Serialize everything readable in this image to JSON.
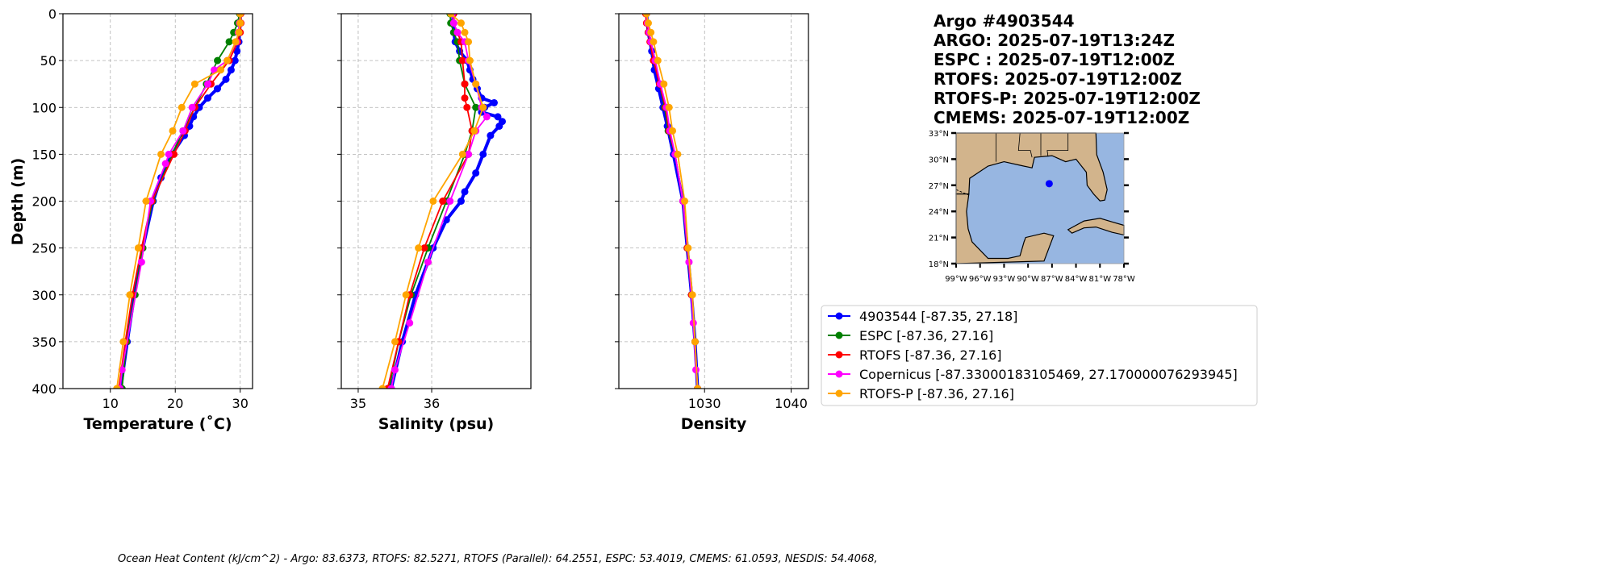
{
  "title_lines": [
    "Argo #4903544",
    "ARGO: 2025-07-19T13:24Z",
    "ESPC : 2025-07-19T12:00Z",
    "RTOFS: 2025-07-19T12:00Z",
    "RTOFS-P: 2025-07-19T12:00Z",
    "CMEMS: 2025-07-19T12:00Z"
  ],
  "footer": "Ocean Heat Content (kJ/cm^2) - Argo: 83.6373,  RTOFS: 82.5271,  RTOFS (Parallel): 64.2551,  ESPC: 53.4019,  CMEMS: 61.0593,  NESDIS: 54.4068,",
  "chart_data": [
    {
      "type": "line",
      "key": "temp",
      "xlabel": "Temperature (˚C)",
      "ylabel": "Depth (m)",
      "xlim": [
        2.7,
        31.9
      ],
      "ylim": [
        400,
        0
      ],
      "xticks": [
        10,
        20,
        30
      ],
      "yticks": [
        0,
        50,
        100,
        150,
        200,
        250,
        300,
        350,
        400
      ],
      "grid": true,
      "series": [
        {
          "name": "4903544",
          "color": "#0000ff",
          "depth": [
            0,
            10,
            20,
            30,
            40,
            50,
            60,
            70,
            80,
            90,
            100,
            110,
            120,
            130,
            150,
            175,
            200,
            250,
            300,
            350,
            400
          ],
          "values": [
            30,
            30,
            29.9,
            29.8,
            29.5,
            29.2,
            28.6,
            27.8,
            26.5,
            25,
            23.7,
            22.8,
            22.2,
            21.4,
            19.5,
            17.8,
            16.6,
            15,
            13.7,
            12.6,
            11.6
          ]
        },
        {
          "name": "ESPC",
          "color": "#008000",
          "depth": [
            0,
            10,
            20,
            30,
            50,
            75,
            100,
            125,
            150,
            200,
            250,
            300,
            350,
            400
          ],
          "values": [
            29.9,
            29.6,
            29,
            28.3,
            26.5,
            24.8,
            23,
            21.2,
            19.5,
            16.5,
            15,
            13.8,
            12.5,
            11.8
          ]
        },
        {
          "name": "RTOFS",
          "color": "#ff0000",
          "depth": [
            0,
            10,
            20,
            30,
            50,
            75,
            100,
            125,
            150,
            200,
            250,
            300,
            350,
            400
          ],
          "values": [
            30.1,
            30.1,
            30,
            29.6,
            28.3,
            25.5,
            23,
            21.5,
            19.8,
            16.4,
            14.8,
            13.4,
            12.3,
            11.3
          ]
        },
        {
          "name": "Copernicus",
          "color": "#ff00ff",
          "depth": [
            0,
            10,
            20,
            30,
            50,
            60,
            75,
            100,
            125,
            150,
            160,
            200,
            265,
            380,
            400
          ],
          "values": [
            30,
            29.9,
            29.7,
            29.4,
            28,
            26,
            25,
            22.6,
            21.2,
            19,
            18.5,
            16.2,
            14.8,
            11.8,
            11.5
          ]
        },
        {
          "name": "RTOFS-P",
          "color": "#ffa500",
          "depth": [
            0,
            10,
            20,
            30,
            50,
            60,
            75,
            100,
            125,
            150,
            200,
            250,
            300,
            350,
            400
          ],
          "values": [
            30,
            30,
            29.8,
            29.3,
            28,
            27,
            23,
            21,
            19.6,
            17.8,
            15.5,
            14.3,
            13,
            12,
            11
          ]
        }
      ]
    },
    {
      "type": "line",
      "key": "sal",
      "xlabel": "Salinity (psu)",
      "xlim": [
        34.77,
        37.35
      ],
      "ylim": [
        400,
        0
      ],
      "xticks": [
        35,
        36
      ],
      "yticks": [
        0,
        50,
        100,
        150,
        200,
        250,
        300,
        350,
        400
      ],
      "grid": true,
      "series": [
        {
          "name": "4903544",
          "color": "#0000ff",
          "depth": [
            0,
            10,
            20,
            30,
            40,
            50,
            60,
            70,
            80,
            90,
            95,
            100,
            105,
            110,
            115,
            120,
            130,
            150,
            170,
            190,
            200,
            220,
            250,
            300,
            350,
            400
          ],
          "values": [
            36.29,
            36.29,
            36.3,
            36.32,
            36.38,
            36.48,
            36.52,
            36.56,
            36.62,
            36.68,
            36.85,
            36.72,
            36.68,
            36.9,
            36.96,
            36.92,
            36.8,
            36.7,
            36.6,
            36.45,
            36.4,
            36.2,
            36.02,
            35.78,
            35.6,
            35.45
          ]
        },
        {
          "name": "ESPC",
          "color": "#008000",
          "depth": [
            0,
            10,
            20,
            30,
            50,
            75,
            100,
            125,
            150,
            200,
            250,
            300,
            350,
            400
          ],
          "values": [
            36.25,
            36.26,
            36.3,
            36.35,
            36.38,
            36.45,
            36.6,
            36.55,
            36.45,
            36.2,
            35.95,
            35.72,
            35.55,
            35.42
          ]
        },
        {
          "name": "RTOFS",
          "color": "#ff0000",
          "depth": [
            0,
            10,
            20,
            30,
            50,
            75,
            90,
            100,
            125,
            150,
            200,
            250,
            300,
            350,
            400
          ],
          "values": [
            36.3,
            36.3,
            36.35,
            36.4,
            36.42,
            36.45,
            36.45,
            36.48,
            36.55,
            36.5,
            36.15,
            35.9,
            35.7,
            35.55,
            35.4
          ]
        },
        {
          "name": "Copernicus",
          "color": "#ff00ff",
          "depth": [
            0,
            10,
            20,
            30,
            50,
            75,
            100,
            110,
            125,
            150,
            200,
            265,
            330,
            380,
            400
          ],
          "values": [
            36.28,
            36.3,
            36.35,
            36.45,
            36.5,
            36.6,
            36.68,
            36.75,
            36.6,
            36.5,
            36.25,
            35.95,
            35.7,
            35.5,
            35.45
          ]
        },
        {
          "name": "RTOFS-P",
          "color": "#ffa500",
          "depth": [
            0,
            10,
            20,
            30,
            50,
            75,
            100,
            125,
            150,
            200,
            250,
            300,
            350,
            400
          ],
          "values": [
            36.26,
            36.4,
            36.45,
            36.5,
            36.52,
            36.6,
            36.7,
            36.58,
            36.42,
            36.02,
            35.82,
            35.65,
            35.5,
            35.33
          ]
        }
      ]
    },
    {
      "type": "line",
      "key": "dens",
      "xlabel": "Density",
      "xlim": [
        1020.1,
        1042
      ],
      "ylim": [
        400,
        0
      ],
      "xticks": [
        1030,
        1040
      ],
      "yticks": [
        0,
        50,
        100,
        150,
        200,
        250,
        300,
        350,
        400
      ],
      "grid": true,
      "series": [
        {
          "name": "4903544",
          "color": "#0000ff",
          "depth": [
            0,
            20,
            40,
            60,
            80,
            100,
            120,
            150,
            200,
            250,
            300,
            350,
            400
          ],
          "values": [
            1023.3,
            1023.5,
            1023.9,
            1024.2,
            1024.7,
            1025.2,
            1025.7,
            1026.4,
            1027.5,
            1028,
            1028.5,
            1028.9,
            1029.2
          ]
        },
        {
          "name": "ESPC",
          "color": "#008000",
          "depth": [
            0,
            10,
            20,
            30,
            50,
            75,
            100,
            125,
            150,
            200,
            250,
            300,
            350,
            400
          ],
          "values": [
            1023.3,
            1023.4,
            1023.6,
            1023.8,
            1024.3,
            1024.8,
            1025.4,
            1025.8,
            1026.6,
            1027.5,
            1028,
            1028.5,
            1028.9,
            1029.2
          ]
        },
        {
          "name": "RTOFS",
          "color": "#ff0000",
          "depth": [
            0,
            10,
            20,
            30,
            50,
            75,
            100,
            125,
            150,
            200,
            250,
            300,
            350,
            400
          ],
          "values": [
            1023.2,
            1023.3,
            1023.5,
            1023.7,
            1024.1,
            1024.8,
            1025.5,
            1025.9,
            1026.6,
            1027.5,
            1028,
            1028.5,
            1028.9,
            1029.2
          ]
        },
        {
          "name": "Copernicus",
          "color": "#ff00ff",
          "depth": [
            0,
            10,
            20,
            30,
            50,
            75,
            100,
            125,
            150,
            200,
            265,
            330,
            380,
            400
          ],
          "values": [
            1023.3,
            1023.4,
            1023.6,
            1023.8,
            1024.3,
            1024.9,
            1025.6,
            1026.0,
            1026.6,
            1027.5,
            1028.2,
            1028.7,
            1029.0,
            1029.2
          ]
        },
        {
          "name": "RTOFS-P",
          "color": "#ffa500",
          "depth": [
            0,
            10,
            20,
            30,
            50,
            75,
            100,
            125,
            150,
            200,
            250,
            300,
            350,
            400
          ],
          "values": [
            1023.3,
            1023.5,
            1023.8,
            1024.1,
            1024.6,
            1025.3,
            1025.9,
            1026.3,
            1026.9,
            1027.7,
            1028.1,
            1028.6,
            1028.9,
            1029.2
          ]
        }
      ]
    }
  ],
  "legend": [
    {
      "label": "4903544 [-87.35, 27.18]",
      "color": "#0000ff"
    },
    {
      "label": "ESPC [-87.36, 27.16]",
      "color": "#008000"
    },
    {
      "label": "RTOFS [-87.36, 27.16]",
      "color": "#ff0000"
    },
    {
      "label": "Copernicus [-87.33000183105469, 27.170000076293945]",
      "color": "#ff00ff"
    },
    {
      "label": "RTOFS-P [-87.36, 27.16]",
      "color": "#ffa500"
    }
  ],
  "map": {
    "lat_ticks": [
      "18°N",
      "21°N",
      "24°N",
      "27°N",
      "30°N",
      "33°N"
    ],
    "lon_ticks": [
      "99°W",
      "96°W",
      "93°W",
      "90°W",
      "87°W",
      "84°W",
      "81°W",
      "78°W"
    ],
    "lon_range": [
      -99,
      -78
    ],
    "lat_range": [
      18,
      33
    ],
    "float_position": [
      -87.35,
      27.18
    ],
    "land_color": "#d2b48c",
    "ocean_color": "#97b6e1",
    "marker_color": "#0000ff"
  }
}
